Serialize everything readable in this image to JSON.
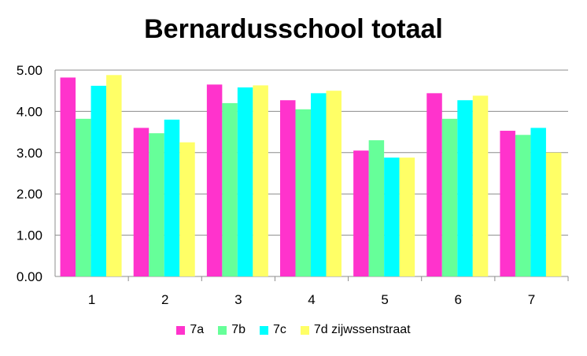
{
  "chart_data": {
    "type": "bar",
    "title": "Bernardusschool totaal",
    "xlabel": "",
    "ylabel": "",
    "categories": [
      "1",
      "2",
      "3",
      "4",
      "5",
      "6",
      "7"
    ],
    "ylim": [
      0,
      5
    ],
    "yticks": [
      "0.00",
      "1.00",
      "2.00",
      "3.00",
      "4.00",
      "5.00"
    ],
    "grid": true,
    "legend_position": "bottom",
    "series": [
      {
        "name": "7a",
        "color": "#ff33cc",
        "values": [
          4.82,
          3.6,
          4.65,
          4.27,
          3.05,
          4.44,
          3.53
        ]
      },
      {
        "name": "7b",
        "color": "#66ff99",
        "values": [
          3.82,
          3.47,
          4.2,
          4.05,
          3.3,
          3.82,
          3.43
        ]
      },
      {
        "name": "7c",
        "color": "#00ffff",
        "values": [
          4.62,
          3.8,
          4.58,
          4.44,
          2.88,
          4.27,
          3.6
        ]
      },
      {
        "name": "7d zijwssenstraat",
        "color": "#ffff66",
        "values": [
          4.88,
          3.25,
          4.63,
          4.5,
          2.88,
          4.38,
          3.0
        ]
      }
    ]
  }
}
